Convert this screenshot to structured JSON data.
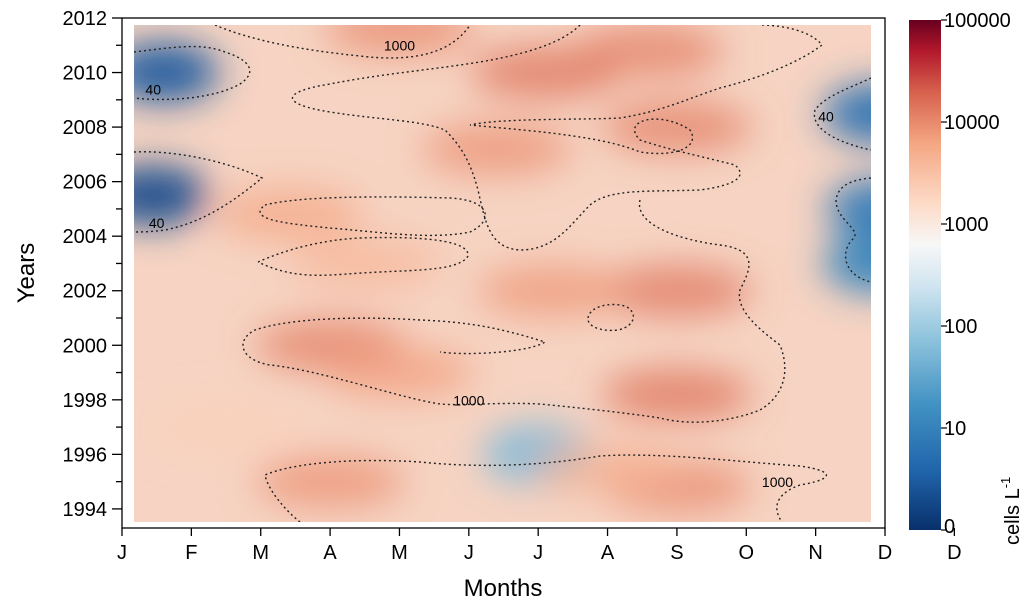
{
  "chart_data": {
    "type": "heatmap",
    "title": "",
    "xlabel": "Months",
    "ylabel": "Years",
    "x_ticks": [
      "J",
      "F",
      "M",
      "A",
      "M",
      "J",
      "J",
      "A",
      "S",
      "O",
      "N",
      "D"
    ],
    "y_ticks": [
      "1994",
      "1996",
      "1998",
      "2000",
      "2002",
      "2004",
      "2006",
      "2008",
      "2010",
      "2012"
    ],
    "x_range": [
      0,
      11
    ],
    "y_range": [
      1993.2,
      2011.8
    ],
    "colorbar": {
      "label": "cells L",
      "label_superscript": "-1",
      "scale": "log",
      "tick_labels": [
        "0",
        "10",
        "100",
        "1000",
        "10000",
        "100000"
      ],
      "tick_values": [
        1,
        10,
        100,
        1000,
        10000,
        100000
      ],
      "low_color": "#08306b",
      "mid_color": "#f7f7f7",
      "high_color": "#67001f"
    },
    "contour_levels": [
      40,
      1000
    ],
    "contour_labels": [
      {
        "text": "40",
        "x": 0.45,
        "y": 2009.2
      },
      {
        "text": "40",
        "x": 0.5,
        "y": 2004.3
      },
      {
        "text": "40",
        "x": 10.15,
        "y": 2008.2
      },
      {
        "text": "1000",
        "x": 4.0,
        "y": 2010.8
      },
      {
        "text": "1000",
        "x": 5.0,
        "y": 1997.8
      },
      {
        "text": "1000",
        "x": 9.45,
        "y": 1994.8
      }
    ],
    "features": [
      {
        "x": 0.6,
        "y": 2010.0,
        "value": 3
      },
      {
        "x": 0.45,
        "y": 2005.5,
        "value": 2
      },
      {
        "x": 10.9,
        "y": 2008.5,
        "value": 6
      },
      {
        "x": 10.95,
        "y": 2005.0,
        "value": 8
      },
      {
        "x": 10.9,
        "y": 2003.0,
        "value": 12
      },
      {
        "x": 6.0,
        "y": 1996.0,
        "value": 60
      },
      {
        "x": 6.1,
        "y": 2010.0,
        "value": 15000
      },
      {
        "x": 7.6,
        "y": 2010.8,
        "value": 12000
      },
      {
        "x": 4.0,
        "y": 2011.6,
        "value": 10000
      },
      {
        "x": 5.4,
        "y": 2007.2,
        "value": 9000
      },
      {
        "x": 8.0,
        "y": 2002.0,
        "value": 14000
      },
      {
        "x": 6.2,
        "y": 2002.0,
        "value": 8000
      },
      {
        "x": 3.0,
        "y": 2000.0,
        "value": 12000
      },
      {
        "x": 4.0,
        "y": 1999.0,
        "value": 7000
      },
      {
        "x": 8.0,
        "y": 1998.2,
        "value": 15000
      },
      {
        "x": 3.0,
        "y": 1995.0,
        "value": 9000
      },
      {
        "x": 8.0,
        "y": 1994.8,
        "value": 10000
      },
      {
        "x": 2.4,
        "y": 2004.8,
        "value": 6000
      },
      {
        "x": 3.5,
        "y": 2003.0,
        "value": 4000
      },
      {
        "x": 7.0,
        "y": 1995.5,
        "value": 4500
      },
      {
        "x": 8.0,
        "y": 2008.0,
        "value": 12000
      },
      {
        "x": 1.5,
        "y": 1997.0,
        "value": 2000
      }
    ]
  }
}
